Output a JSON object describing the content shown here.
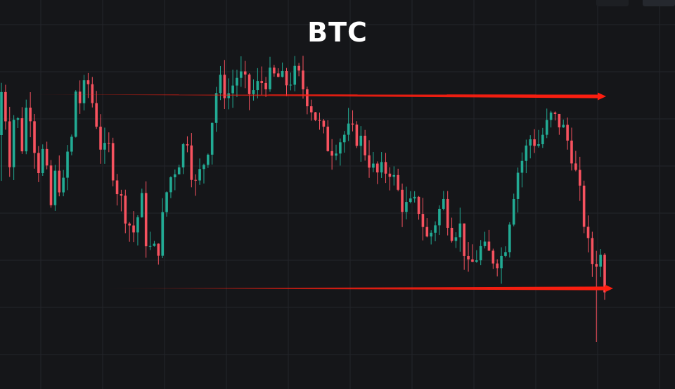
{
  "title": "BTC",
  "colors": {
    "background": "#151619",
    "grid": "#23252a",
    "up": "#22ab94",
    "down": "#f7525f",
    "annotation": "#ff1e10"
  },
  "chart_data": {
    "type": "candlestick",
    "title": "BTC",
    "xlabel": "",
    "ylabel": "",
    "grid": true,
    "candle_count": 147,
    "y_range": [
      0,
      1000
    ],
    "start_price": 650,
    "end_price": 220,
    "annotations": [
      {
        "type": "horizontal-arrow",
        "name": "resistance",
        "level": 827
      },
      {
        "type": "horizontal-arrow",
        "name": "support",
        "level": 300
      }
    ]
  }
}
